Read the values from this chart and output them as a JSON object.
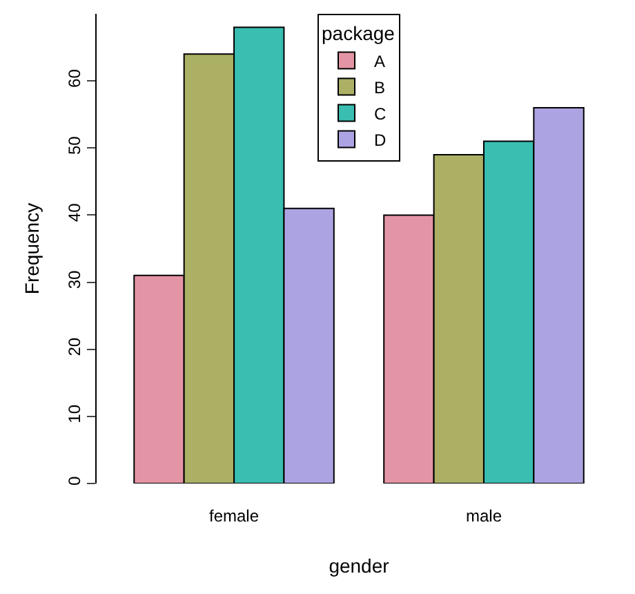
{
  "chart_data": {
    "type": "bar",
    "xlabel": "gender",
    "ylabel": "Frequency",
    "legend_title": "package",
    "categories": [
      "female",
      "male"
    ],
    "series": [
      {
        "name": "A",
        "color": "#e495a5",
        "values": [
          31,
          40
        ]
      },
      {
        "name": "B",
        "color": "#abb065",
        "values": [
          64,
          49
        ]
      },
      {
        "name": "C",
        "color": "#39beb1",
        "values": [
          68,
          51
        ]
      },
      {
        "name": "D",
        "color": "#aca4e2",
        "values": [
          41,
          56
        ]
      }
    ],
    "ylim": [
      0,
      70
    ],
    "yticks": [
      0,
      10,
      20,
      30,
      40,
      50,
      60
    ],
    "legend": "top"
  }
}
